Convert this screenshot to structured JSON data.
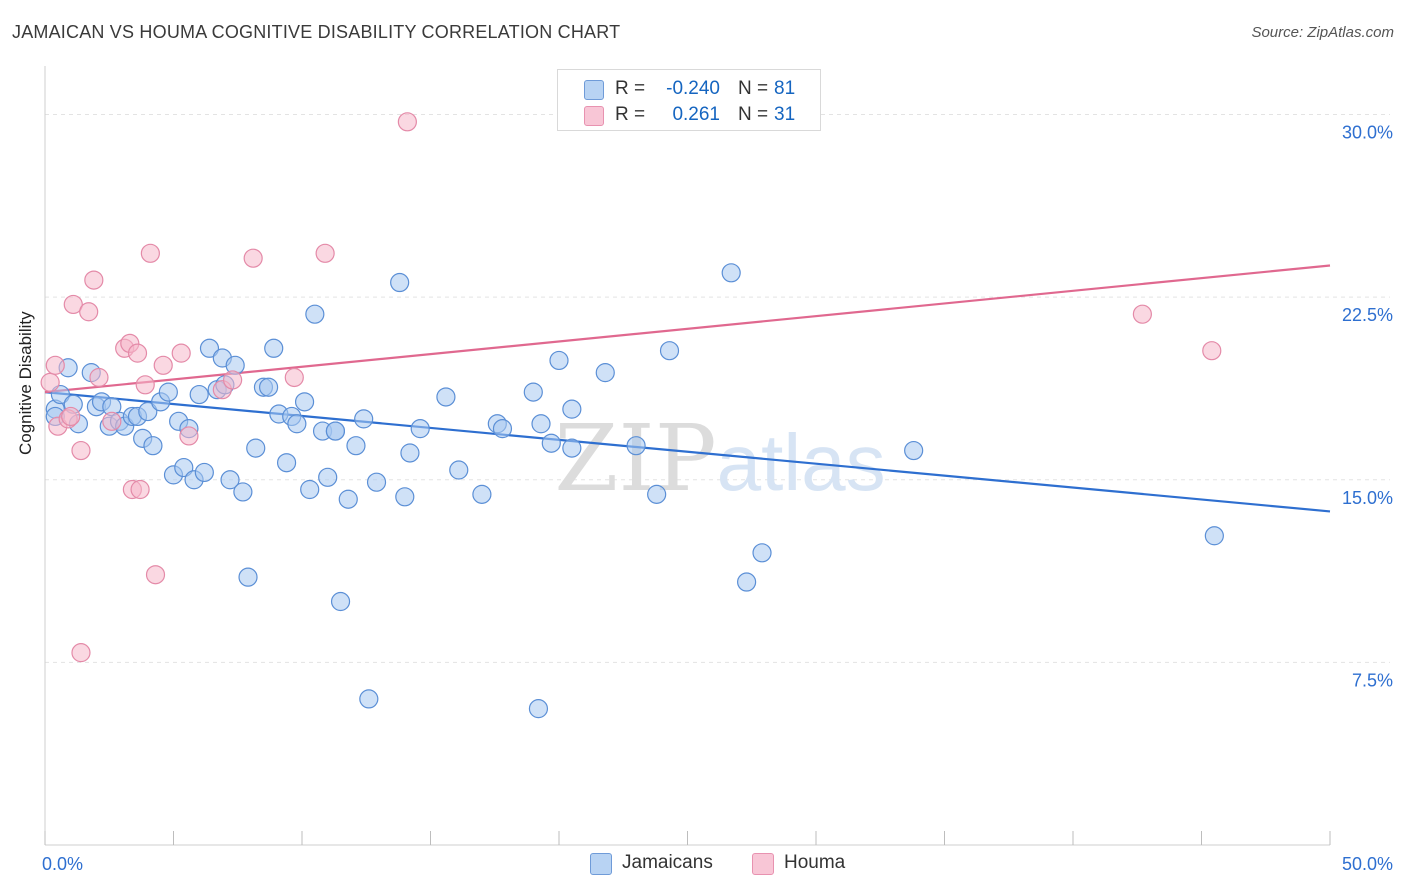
{
  "title": "JAMAICAN VS HOUMA COGNITIVE DISABILITY CORRELATION CHART",
  "source": "Source: ZipAtlas.com",
  "watermark": "ZIPatlas",
  "legend": {
    "rows": [
      {
        "r_label": "R =",
        "r_value": "-0.240",
        "n_label": "N =",
        "n_value": "81"
      },
      {
        "r_label": "R =",
        "r_value": "0.261",
        "n_label": "N =",
        "n_value": "31"
      }
    ]
  },
  "bottom_legend": [
    "Jamaicans",
    "Houma"
  ],
  "colors": {
    "jamaicans_fill": "#a8c8f0",
    "jamaicans_stroke": "#5b8fd6",
    "jamaicans_line": "#2e6fd0",
    "houma_fill": "#f5b8cb",
    "houma_stroke": "#e48aa8",
    "houma_line": "#e0688f",
    "tick_label": "#2e6fd0",
    "grid": "#e3e3e3"
  },
  "chart_data": {
    "type": "scatter",
    "title": "JAMAICAN VS HOUMA COGNITIVE DISABILITY CORRELATION CHART",
    "xlabel": "",
    "ylabel": "Cognitive Disability",
    "xlim": [
      0,
      50
    ],
    "ylim": [
      0,
      31.5
    ],
    "x_tick_labels": [
      "0.0%",
      "50.0%"
    ],
    "y_ticks": [
      7.5,
      15.0,
      22.5,
      30.0
    ],
    "y_tick_labels": [
      "7.5%",
      "15.0%",
      "22.5%",
      "30.0%"
    ],
    "grid": true,
    "legend_position": "top-center",
    "series": [
      {
        "name": "Jamaicans",
        "trend": {
          "x": [
            0,
            50
          ],
          "y": [
            18.6,
            13.7
          ]
        },
        "points": [
          [
            0.4,
            17.9
          ],
          [
            0.4,
            17.6
          ],
          [
            0.6,
            18.5
          ],
          [
            0.9,
            19.6
          ],
          [
            1.1,
            18.1
          ],
          [
            1.3,
            17.3
          ],
          [
            1.8,
            19.4
          ],
          [
            2.0,
            18.0
          ],
          [
            2.2,
            18.2
          ],
          [
            2.5,
            17.2
          ],
          [
            2.6,
            18.0
          ],
          [
            2.9,
            17.4
          ],
          [
            3.1,
            17.2
          ],
          [
            3.4,
            17.6
          ],
          [
            3.6,
            17.6
          ],
          [
            3.8,
            16.7
          ],
          [
            4.0,
            17.8
          ],
          [
            4.2,
            16.4
          ],
          [
            4.5,
            18.2
          ],
          [
            4.8,
            18.6
          ],
          [
            5.0,
            15.2
          ],
          [
            5.2,
            17.4
          ],
          [
            5.4,
            15.5
          ],
          [
            5.6,
            17.1
          ],
          [
            5.8,
            15.0
          ],
          [
            6.0,
            18.5
          ],
          [
            6.2,
            15.3
          ],
          [
            6.4,
            20.4
          ],
          [
            6.7,
            18.7
          ],
          [
            6.9,
            20.0
          ],
          [
            7.2,
            15.0
          ],
          [
            7.4,
            19.7
          ],
          [
            7.7,
            14.5
          ],
          [
            7.9,
            11.0
          ],
          [
            8.2,
            16.3
          ],
          [
            8.5,
            18.8
          ],
          [
            8.7,
            18.8
          ],
          [
            8.9,
            20.4
          ],
          [
            9.1,
            17.7
          ],
          [
            9.4,
            15.7
          ],
          [
            9.6,
            17.6
          ],
          [
            9.8,
            17.3
          ],
          [
            10.1,
            18.2
          ],
          [
            10.3,
            14.6
          ],
          [
            10.5,
            21.8
          ],
          [
            10.8,
            17.0
          ],
          [
            11.0,
            15.1
          ],
          [
            11.3,
            17.0
          ],
          [
            11.5,
            10.0
          ],
          [
            11.8,
            14.2
          ],
          [
            12.1,
            16.4
          ],
          [
            12.4,
            17.5
          ],
          [
            12.6,
            6.0
          ],
          [
            12.9,
            14.9
          ],
          [
            13.8,
            23.1
          ],
          [
            14.0,
            14.3
          ],
          [
            14.2,
            16.1
          ],
          [
            15.6,
            18.4
          ],
          [
            16.1,
            15.4
          ],
          [
            17.0,
            14.4
          ],
          [
            17.6,
            17.3
          ],
          [
            17.8,
            17.1
          ],
          [
            19.2,
            5.6
          ],
          [
            19.3,
            17.3
          ],
          [
            19.7,
            16.5
          ],
          [
            20.0,
            19.9
          ],
          [
            19.0,
            18.6
          ],
          [
            20.5,
            17.9
          ],
          [
            20.5,
            16.3
          ],
          [
            21.8,
            19.4
          ],
          [
            23.0,
            16.4
          ],
          [
            23.8,
            14.4
          ],
          [
            24.3,
            20.3
          ],
          [
            26.7,
            23.5
          ],
          [
            27.3,
            10.8
          ],
          [
            27.9,
            12.0
          ],
          [
            33.8,
            16.2
          ],
          [
            45.5,
            12.7
          ],
          [
            14.6,
            17.1
          ],
          [
            7.0,
            18.9
          ],
          [
            11.3,
            17.0
          ]
        ]
      },
      {
        "name": "Houma",
        "trend": {
          "x": [
            0,
            50
          ],
          "y": [
            18.6,
            23.8
          ]
        },
        "points": [
          [
            0.2,
            19.0
          ],
          [
            0.5,
            17.2
          ],
          [
            0.9,
            17.5
          ],
          [
            1.1,
            22.2
          ],
          [
            1.4,
            16.2
          ],
          [
            1.7,
            21.9
          ],
          [
            1.9,
            23.2
          ],
          [
            2.1,
            19.2
          ],
          [
            2.6,
            17.4
          ],
          [
            3.1,
            20.4
          ],
          [
            3.3,
            20.6
          ],
          [
            3.6,
            20.2
          ],
          [
            3.9,
            18.9
          ],
          [
            4.1,
            24.3
          ],
          [
            4.3,
            11.1
          ],
          [
            4.6,
            19.7
          ],
          [
            5.3,
            20.2
          ],
          [
            5.6,
            16.8
          ],
          [
            6.9,
            18.7
          ],
          [
            7.3,
            19.1
          ],
          [
            8.1,
            24.1
          ],
          [
            9.7,
            19.2
          ],
          [
            10.9,
            24.3
          ],
          [
            14.1,
            29.7
          ],
          [
            1.4,
            7.9
          ],
          [
            3.4,
            14.6
          ],
          [
            3.7,
            14.6
          ],
          [
            42.7,
            21.8
          ],
          [
            45.4,
            20.3
          ],
          [
            0.4,
            19.7
          ],
          [
            1.0,
            17.6
          ]
        ]
      }
    ]
  }
}
